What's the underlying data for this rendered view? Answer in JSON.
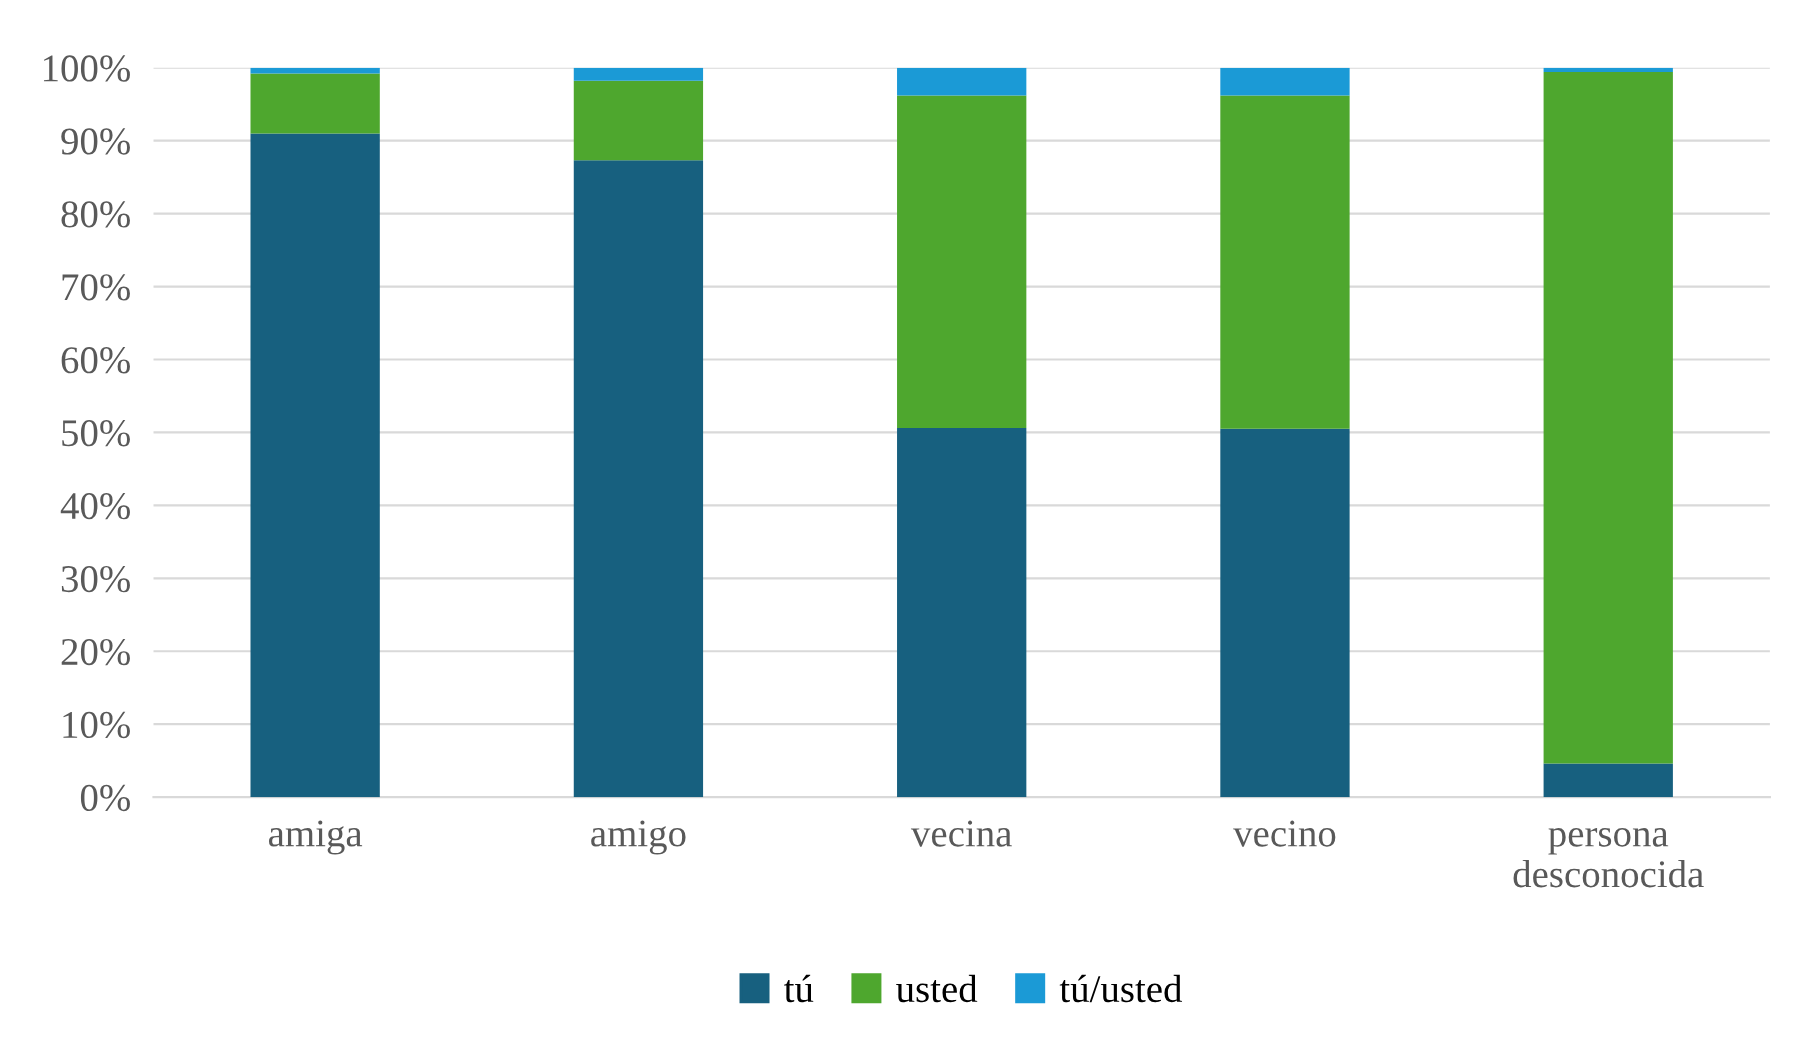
{
  "chart_data": {
    "type": "bar",
    "stacked": true,
    "categories": [
      "amiga",
      "amigo",
      "vecina",
      "vecino",
      "persona\ndesconocida"
    ],
    "series": [
      {
        "name": "tú",
        "color": "#17607f",
        "values": [
          91,
          87.3,
          50.6,
          50.5,
          4.6
        ]
      },
      {
        "name": "usted",
        "color": "#4ea72e",
        "values": [
          8.2,
          10.9,
          45.6,
          45.7,
          94.8
        ]
      },
      {
        "name": "tú/usted",
        "color": "#1b9ad6",
        "values": [
          0.8,
          1.8,
          3.8,
          3.8,
          0.6
        ]
      }
    ],
    "ylim": [
      0,
      100
    ],
    "yticks": [
      {
        "value": 0,
        "label": "0%"
      },
      {
        "value": 10,
        "label": "10%"
      },
      {
        "value": 20,
        "label": "20%"
      },
      {
        "value": 30,
        "label": "30%"
      },
      {
        "value": 40,
        "label": "40%"
      },
      {
        "value": 50,
        "label": "50%"
      },
      {
        "value": 60,
        "label": "60%"
      },
      {
        "value": 70,
        "label": "70%"
      },
      {
        "value": 80,
        "label": "80%"
      },
      {
        "value": 90,
        "label": "90%"
      },
      {
        "value": 100,
        "label": "100%"
      }
    ],
    "grid": "y",
    "legend": "bottom"
  }
}
